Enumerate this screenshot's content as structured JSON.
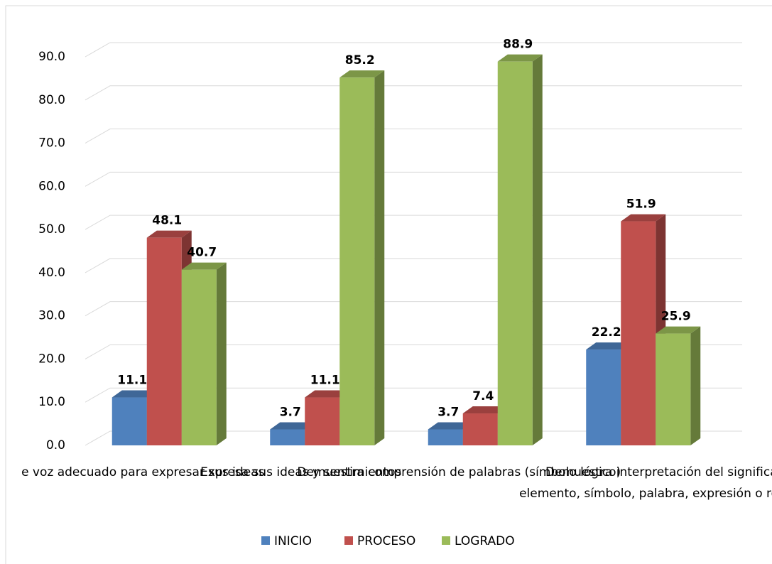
{
  "chart_data": {
    "type": "bar3d",
    "categories": [
      "e voz adecuado para expresar sus ideas",
      "Expresa sus ideas y sentimientos",
      "Demuestra comprensión de palabras (símbolo lógico)",
      [
        "Demuestra interpretación del significado de un",
        "elemento, símbolo, palabra, expresión o representación"
      ]
    ],
    "series": [
      {
        "name": "INICIO",
        "color": "#4f81bd",
        "values": [
          11.1,
          3.7,
          3.7,
          22.2
        ]
      },
      {
        "name": "PROCESO",
        "color": "#c0504d",
        "values": [
          48.1,
          11.1,
          7.4,
          51.9
        ]
      },
      {
        "name": "LOGRADO",
        "color": "#9bbb59",
        "values": [
          40.7,
          85.2,
          88.9,
          25.9
        ]
      }
    ],
    "ylim": [
      0,
      90
    ],
    "yticks": [
      {
        "value": 0,
        "label": "0.0"
      },
      {
        "value": 10,
        "label": "10.0"
      },
      {
        "value": 20,
        "label": "20.0"
      },
      {
        "value": 30,
        "label": "30.0"
      },
      {
        "value": 40,
        "label": "40.0"
      },
      {
        "value": 50,
        "label": "50.0"
      },
      {
        "value": 60,
        "label": "60.0"
      },
      {
        "value": 70,
        "label": "70.0"
      },
      {
        "value": 80,
        "label": "80.0"
      },
      {
        "value": 90,
        "label": "90.0"
      }
    ],
    "grid": true,
    "legend": "bottom"
  }
}
